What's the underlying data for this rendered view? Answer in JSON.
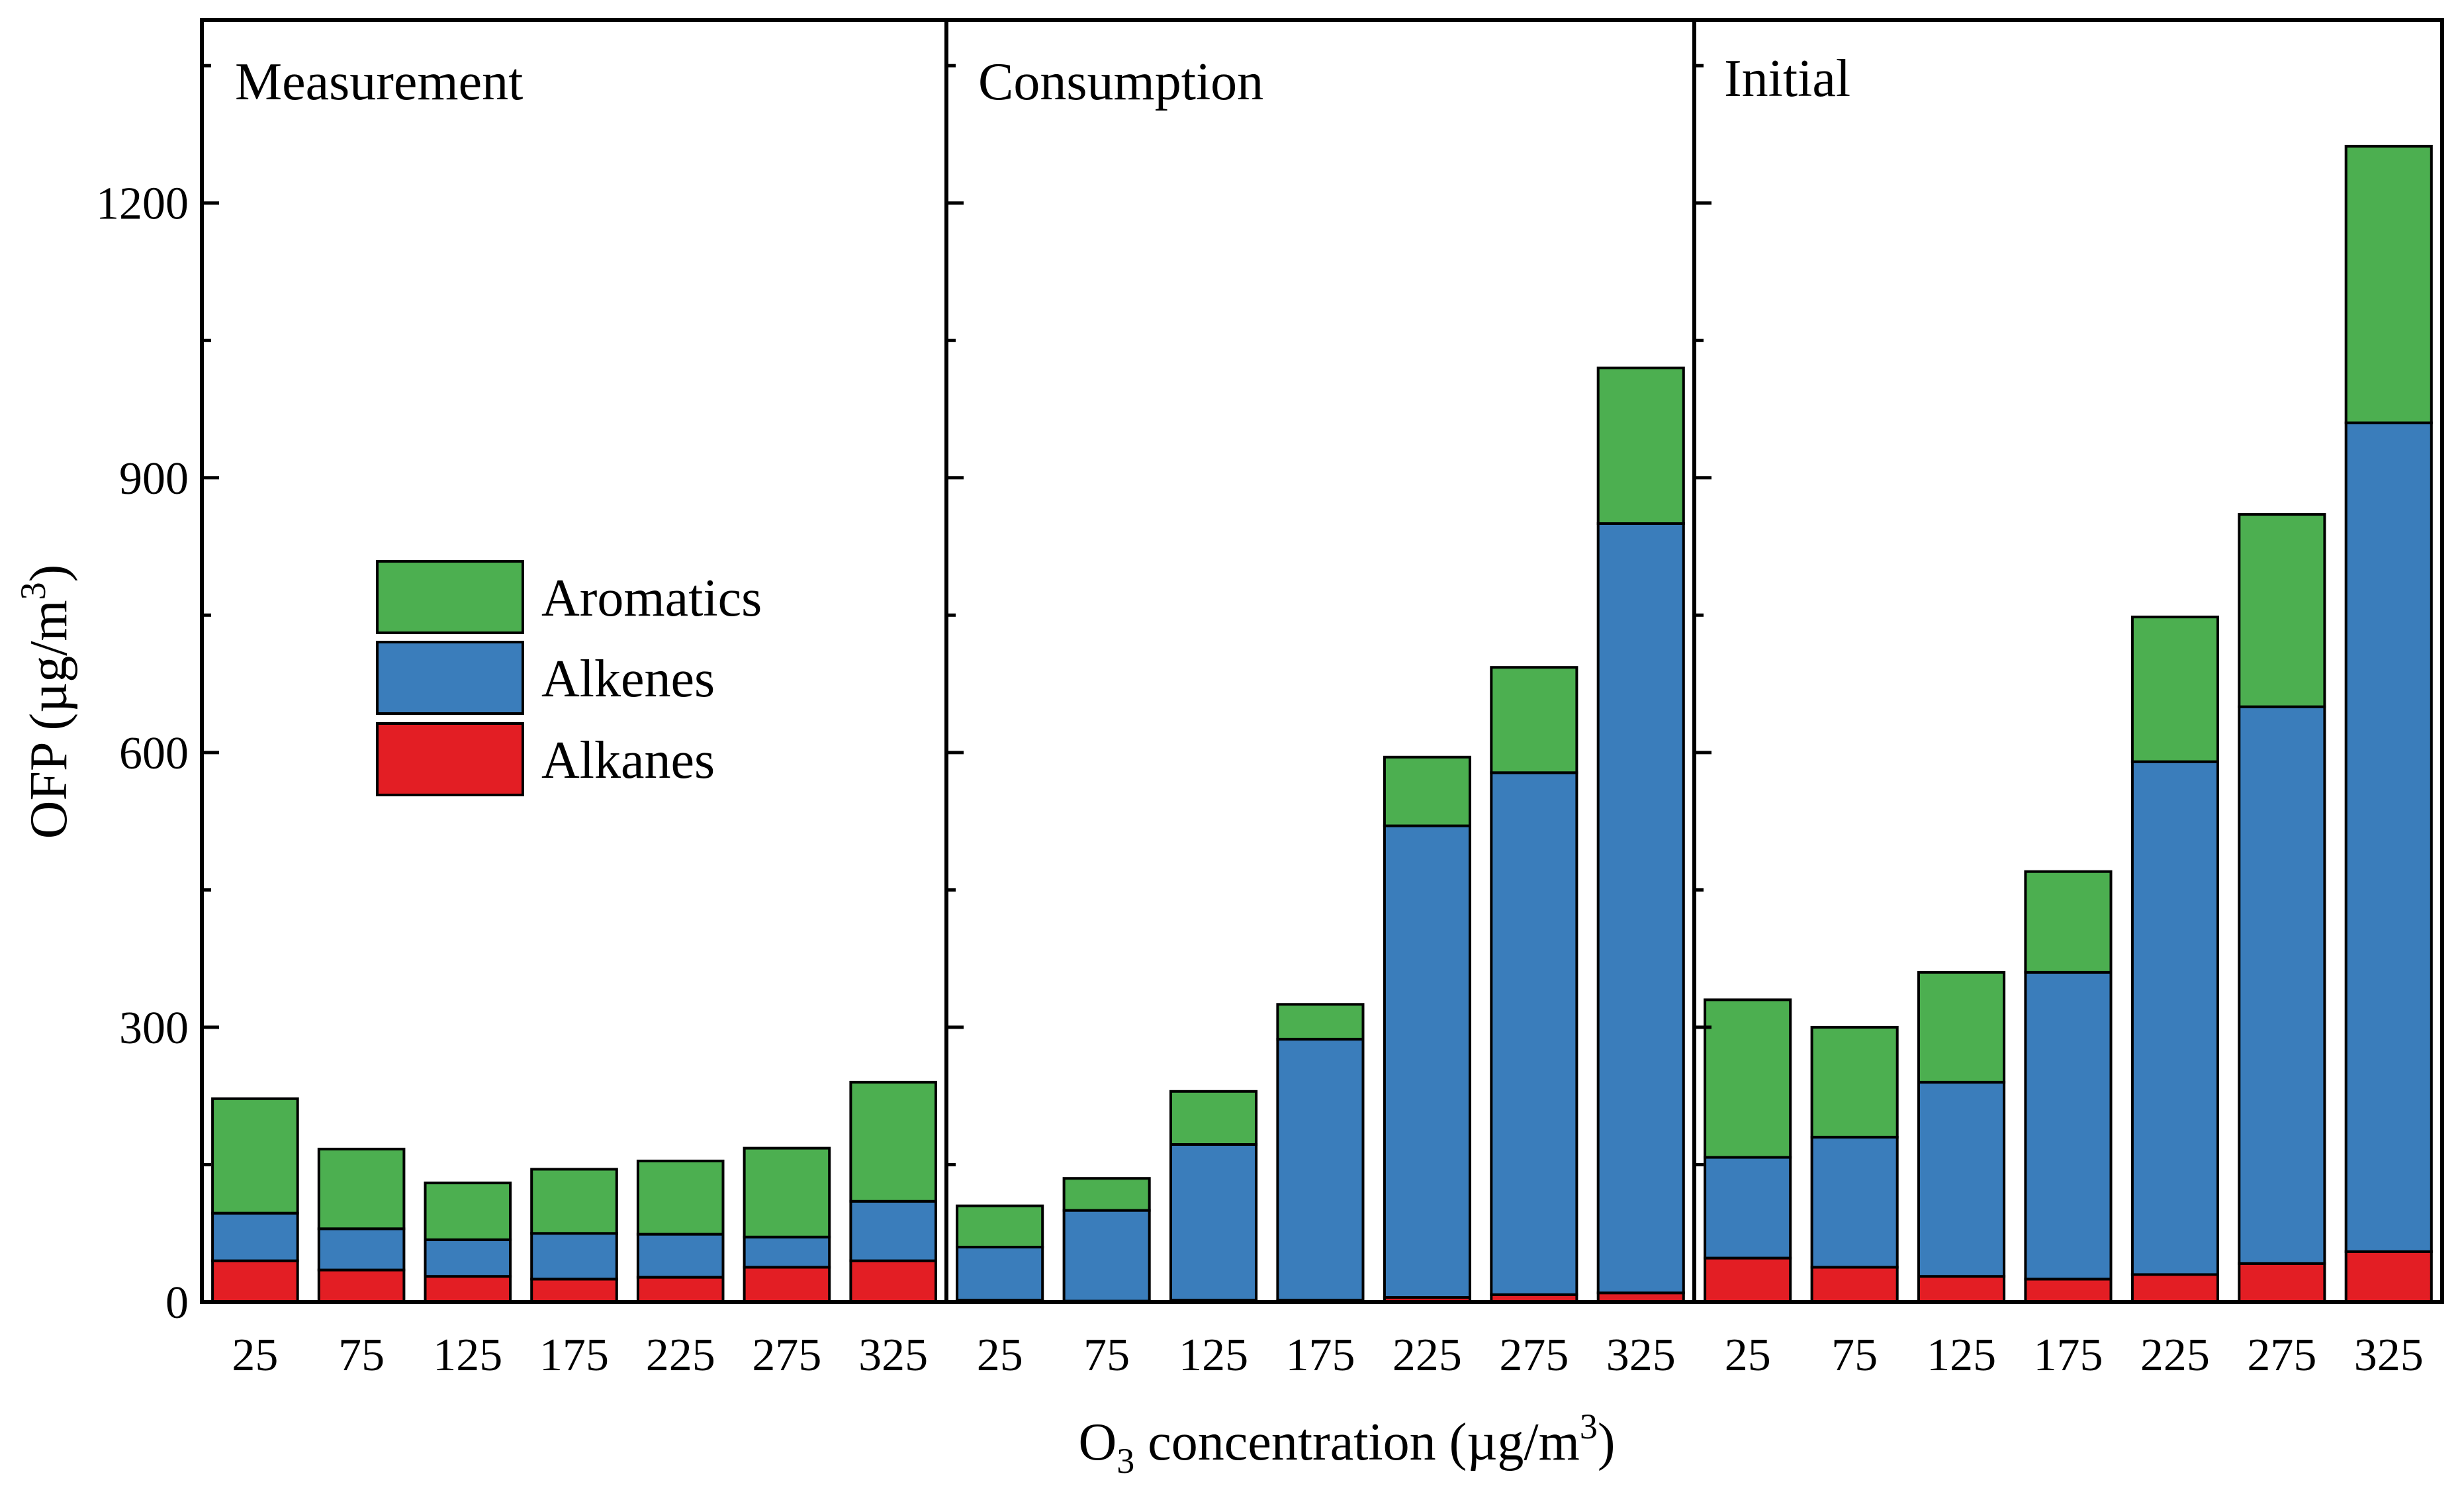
{
  "chart_data": {
    "type": "bar",
    "stacked": true,
    "ylabel": "OFP (µg/m³)",
    "ylabel_text": "OFP (µg/m",
    "ylabel_sup": "3",
    "ylabel_close": ")",
    "xlabel": "O₃ concentration (µg/m³)",
    "xlabel_prefix": "O",
    "xlabel_sub": "3",
    "xlabel_text": " concentration (µg/m",
    "xlabel_sup": "3",
    "xlabel_close": ")",
    "ylim": [
      0,
      1400
    ],
    "yticks": [
      0,
      300,
      600,
      900,
      1200
    ],
    "ytick_labels": [
      "0",
      "300",
      "600",
      "900",
      "1200"
    ],
    "categories": [
      "25",
      "75",
      "125",
      "175",
      "225",
      "275",
      "325"
    ],
    "legend": {
      "placement": "left-middle of first panel",
      "entries": [
        {
          "name": "Aromatics",
          "color": "#4caf50"
        },
        {
          "name": "Alkenes",
          "color": "#3a7dbb"
        },
        {
          "name": "Alkanes",
          "color": "#e31e24"
        }
      ]
    },
    "panels": [
      {
        "title": "Measurement",
        "series": [
          {
            "name": "Alkanes",
            "values": [
              45,
              35,
              28,
              25,
              27,
              38,
              45
            ]
          },
          {
            "name": "Alkenes",
            "values": [
              52,
              45,
              40,
              50,
              47,
              33,
              65
            ]
          },
          {
            "name": "Aromatics",
            "values": [
              125,
              87,
              62,
              70,
              80,
              97,
              130
            ]
          }
        ]
      },
      {
        "title": "Consumption",
        "series": [
          {
            "name": "Alkanes",
            "values": [
              2,
              1,
              2,
              2,
              5,
              8,
              10
            ]
          },
          {
            "name": "Alkenes",
            "values": [
              58,
              99,
              170,
              285,
              515,
              570,
              840
            ]
          },
          {
            "name": "Aromatics",
            "values": [
              45,
              35,
              58,
              38,
              75,
              115,
              170
            ]
          }
        ]
      },
      {
        "title": "Initial",
        "series": [
          {
            "name": "Alkanes",
            "values": [
              48,
              38,
              28,
              25,
              30,
              42,
              55
            ]
          },
          {
            "name": "Alkenes",
            "values": [
              110,
              142,
              212,
              335,
              560,
              608,
              905
            ]
          },
          {
            "name": "Aromatics",
            "values": [
              172,
              120,
              120,
              110,
              158,
              210,
              302
            ]
          }
        ]
      }
    ]
  }
}
